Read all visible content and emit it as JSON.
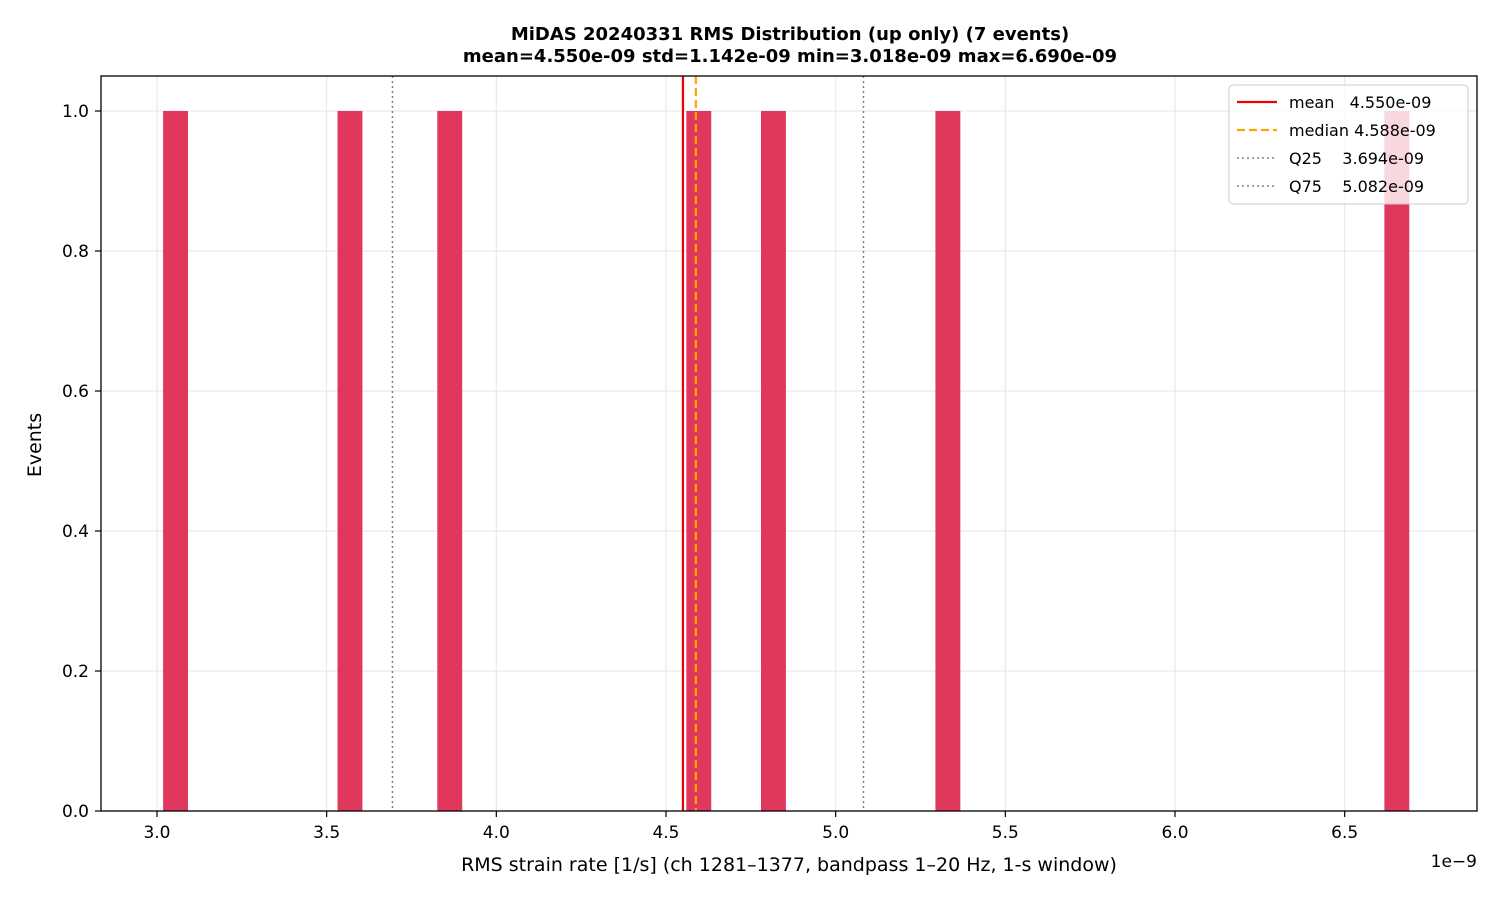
{
  "chart_data": {
    "type": "bar",
    "title": "MiDAS 20240331  RMS Distribution  (up only)  (7 events)",
    "subtitle": "mean=4.550e-09  std=1.142e-09  min=3.018e-09  max=6.690e-09",
    "xlabel": "RMS strain rate [1/s]  (ch 1281–1377, bandpass 1–20 Hz, 1-s window)",
    "ylabel": "Events",
    "x_offset_label": "1e−9",
    "xlim": [
      2.835,
      6.89
    ],
    "ylim": [
      0,
      1.05
    ],
    "x_ticks": [
      3.0,
      3.5,
      4.0,
      4.5,
      5.0,
      5.5,
      6.0,
      6.5
    ],
    "x_tick_labels": [
      "3.0",
      "3.5",
      "4.0",
      "4.5",
      "5.0",
      "5.5",
      "6.0",
      "6.5"
    ],
    "y_ticks": [
      0.0,
      0.2,
      0.4,
      0.6,
      0.8,
      1.0
    ],
    "y_tick_labels": [
      "0.0",
      "0.2",
      "0.4",
      "0.6",
      "0.8",
      "1.0"
    ],
    "grid": true,
    "bin_width": 0.0734,
    "bars": [
      {
        "x_start": 3.018,
        "count": 1
      },
      {
        "x_start": 3.532,
        "count": 1
      },
      {
        "x_start": 3.826,
        "count": 1
      },
      {
        "x_start": 4.56,
        "count": 1
      },
      {
        "x_start": 4.78,
        "count": 1
      },
      {
        "x_start": 5.294,
        "count": 1
      },
      {
        "x_start": 6.617,
        "count": 1
      }
    ],
    "bar_color": "#e0385c",
    "lines": [
      {
        "label": "mean   4.550e-09",
        "x": 4.55,
        "color": "#ee0000",
        "style": "solid"
      },
      {
        "label": "median 4.588e-09",
        "x": 4.588,
        "color": "#ffa500",
        "style": "dashed"
      },
      {
        "label": "Q25    3.694e-09",
        "x": 3.694,
        "color": "#808080",
        "style": "dotted"
      },
      {
        "label": "Q75    5.082e-09",
        "x": 5.082,
        "color": "#808080",
        "style": "dotted"
      }
    ],
    "legend_position": "top-right"
  }
}
